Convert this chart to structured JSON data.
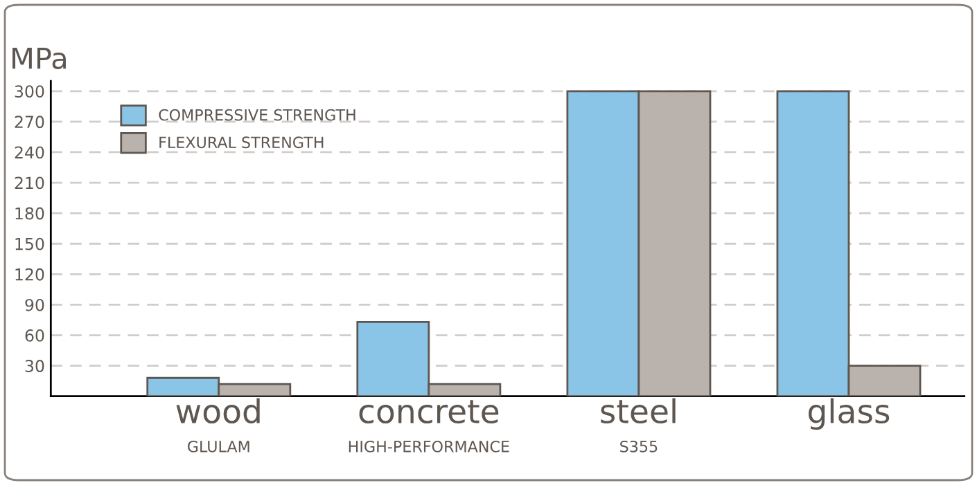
{
  "chart_data": {
    "type": "bar",
    "ylabel": "MPa",
    "categories": [
      "wood\nGLULAM",
      "concrete\nHIGH-PERFORMANCE",
      "steel\nS355",
      "glass"
    ],
    "series": [
      {
        "name": "COMPRESSIVE STRENGTH",
        "color": "#8ac4e6",
        "values": [
          18,
          73,
          300,
          300
        ]
      },
      {
        "name": "FLEXURAL STRENGTH",
        "color": "#bab3ad",
        "values": [
          12,
          12,
          300,
          30
        ]
      }
    ],
    "ylim": [
      0,
      310
    ],
    "yticks": [
      30,
      60,
      90,
      120,
      150,
      180,
      210,
      240,
      270,
      300
    ],
    "grid": "y",
    "legend": "top left"
  }
}
